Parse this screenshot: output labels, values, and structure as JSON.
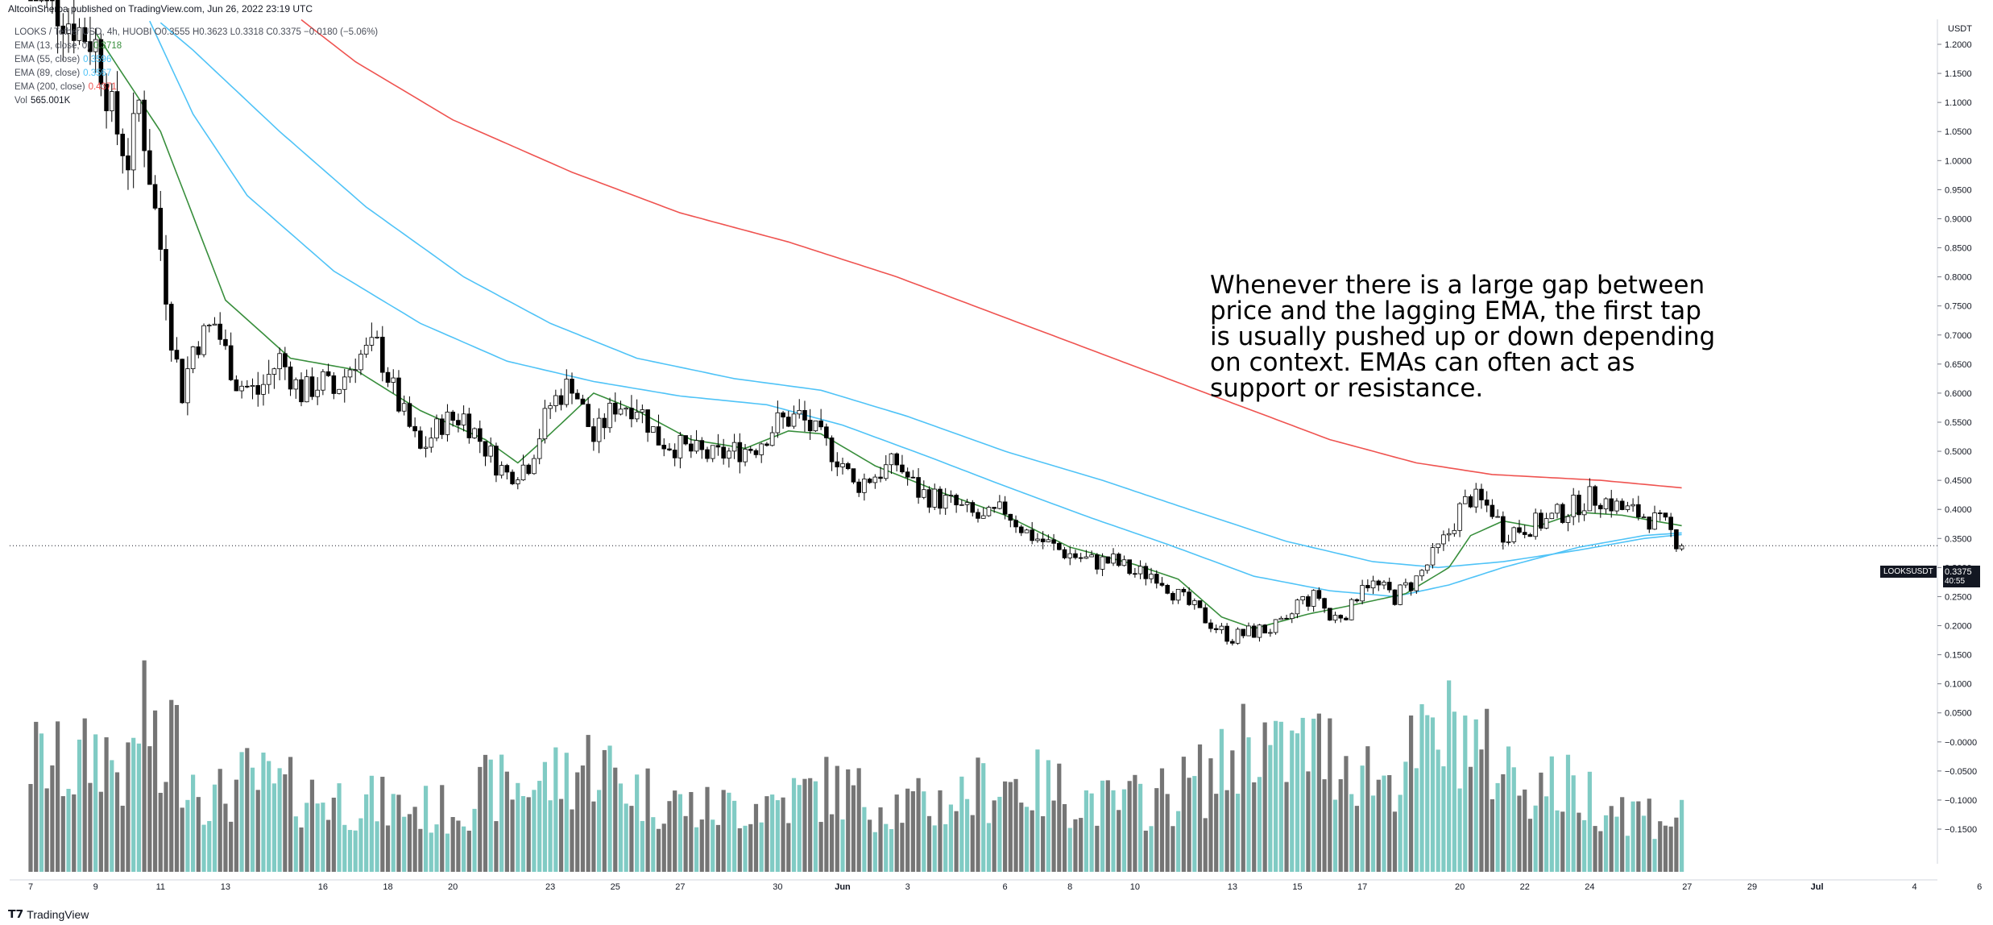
{
  "header": {
    "attribution": "AltcoinSherpa published on TradingView.com, Jun 26, 2022 23:19 UTC"
  },
  "legend": {
    "ohlc": "LOOKS / Tether USD, 4h, HUOBI  O0.3555  H0.3623  L0.3318  C0.3375  −0.0180 (−5.06%)",
    "ema13": {
      "label": "EMA (13, close, 0)",
      "value": "0.3718",
      "color": "#388e3c"
    },
    "ema55": {
      "label": "EMA (55, close)",
      "value": "0.3596",
      "color": "#4fc3f7"
    },
    "ema89": {
      "label": "EMA (89, close)",
      "value": "0.3567",
      "color": "#4fc3f7"
    },
    "ema200": {
      "label": "EMA (200, close)",
      "value": "0.4371",
      "color": "#ef5350"
    },
    "vol": {
      "label": "Vol",
      "value": "565.001K"
    }
  },
  "annotation": "Whenever there is a large gap between price and the lagging EMA, the first tap is usually pushed up or down depending on context. EMAs can often act as support or resistance.",
  "price_axis": {
    "unit": "USDT",
    "ticks": [
      "1.2000",
      "1.1500",
      "1.1000",
      "1.0500",
      "1.0000",
      "0.9500",
      "0.9000",
      "0.8500",
      "0.8000",
      "0.7500",
      "0.7000",
      "0.6500",
      "0.6000",
      "0.5500",
      "0.5000",
      "0.4500",
      "0.4000",
      "0.3500",
      "0.3000",
      "0.2500",
      "0.2000",
      "0.1500",
      "0.1000",
      "0.0500",
      "−0.0000",
      "−0.0500",
      "−0.1000",
      "−0.1500"
    ]
  },
  "current_price": {
    "symbol": "LOOKSUSDT",
    "price": "0.3375",
    "countdown": "40:55"
  },
  "time_axis": {
    "labels": [
      {
        "label": "7",
        "t": 0
      },
      {
        "label": "9",
        "t": 12
      },
      {
        "label": "11",
        "t": 24
      },
      {
        "label": "13",
        "t": 36
      },
      {
        "label": "16",
        "t": 54
      },
      {
        "label": "18",
        "t": 66
      },
      {
        "label": "20",
        "t": 78
      },
      {
        "label": "23",
        "t": 96
      },
      {
        "label": "25",
        "t": 108
      },
      {
        "label": "27",
        "t": 120
      },
      {
        "label": "30",
        "t": 138
      },
      {
        "label": "Jun",
        "t": 150
      },
      {
        "label": "3",
        "t": 162
      },
      {
        "label": "6",
        "t": 180
      },
      {
        "label": "8",
        "t": 192
      },
      {
        "label": "10",
        "t": 204
      },
      {
        "label": "13",
        "t": 222
      },
      {
        "label": "15",
        "t": 234
      },
      {
        "label": "17",
        "t": 246
      },
      {
        "label": "20",
        "t": 264
      },
      {
        "label": "22",
        "t": 276
      },
      {
        "label": "24",
        "t": 288
      },
      {
        "label": "27",
        "t": 306
      },
      {
        "label": "29",
        "t": 318
      },
      {
        "label": "Jul",
        "t": 330
      },
      {
        "label": "4",
        "t": 348
      },
      {
        "label": "6",
        "t": 360
      }
    ]
  },
  "chart_data": {
    "type": "candlestick",
    "interval": "4h",
    "y_scale": "linear",
    "ylim": [
      -0.17,
      1.22
    ],
    "colors": {
      "up": "#ffffff",
      "down": "#000000",
      "vol_up": "#80cbc4",
      "vol_down": "#757575",
      "ema13": "#388e3c",
      "ema55": "#4fc3f7",
      "ema89": "#4fc3f7",
      "ema200": "#ef5350"
    },
    "close_anchors": [
      [
        0,
        1.3
      ],
      [
        12,
        1.2
      ],
      [
        14,
        1.12
      ],
      [
        16,
        1.05
      ],
      [
        18,
        1.0
      ],
      [
        20,
        1.1
      ],
      [
        24,
        0.85
      ],
      [
        26,
        0.7
      ],
      [
        28,
        0.6
      ],
      [
        30,
        0.68
      ],
      [
        34,
        0.72
      ],
      [
        38,
        0.62
      ],
      [
        42,
        0.6
      ],
      [
        46,
        0.66
      ],
      [
        50,
        0.6
      ],
      [
        54,
        0.62
      ],
      [
        56,
        0.6
      ],
      [
        60,
        0.66
      ],
      [
        64,
        0.68
      ],
      [
        68,
        0.58
      ],
      [
        72,
        0.5
      ],
      [
        76,
        0.55
      ],
      [
        80,
        0.56
      ],
      [
        86,
        0.48
      ],
      [
        88,
        0.46
      ],
      [
        92,
        0.48
      ],
      [
        96,
        0.58
      ],
      [
        100,
        0.62
      ],
      [
        104,
        0.52
      ],
      [
        108,
        0.58
      ],
      [
        112,
        0.58
      ],
      [
        116,
        0.52
      ],
      [
        122,
        0.5
      ],
      [
        126,
        0.49
      ],
      [
        130,
        0.5
      ],
      [
        134,
        0.51
      ],
      [
        138,
        0.55
      ],
      [
        142,
        0.56
      ],
      [
        146,
        0.52
      ],
      [
        150,
        0.48
      ],
      [
        152,
        0.44
      ],
      [
        156,
        0.46
      ],
      [
        160,
        0.48
      ],
      [
        164,
        0.43
      ],
      [
        170,
        0.41
      ],
      [
        176,
        0.38
      ],
      [
        180,
        0.4
      ],
      [
        184,
        0.36
      ],
      [
        190,
        0.33
      ],
      [
        196,
        0.31
      ],
      [
        200,
        0.31
      ],
      [
        204,
        0.29
      ],
      [
        208,
        0.29
      ],
      [
        212,
        0.25
      ],
      [
        216,
        0.22
      ],
      [
        220,
        0.19
      ],
      [
        222,
        0.18
      ],
      [
        226,
        0.19
      ],
      [
        232,
        0.2
      ],
      [
        234,
        0.24
      ],
      [
        238,
        0.25
      ],
      [
        240,
        0.21
      ],
      [
        244,
        0.23
      ],
      [
        246,
        0.28
      ],
      [
        248,
        0.27
      ],
      [
        252,
        0.25
      ],
      [
        256,
        0.28
      ],
      [
        260,
        0.33
      ],
      [
        262,
        0.36
      ],
      [
        264,
        0.4
      ],
      [
        266,
        0.42
      ],
      [
        268,
        0.41
      ],
      [
        270,
        0.4
      ],
      [
        272,
        0.36
      ],
      [
        276,
        0.37
      ],
      [
        280,
        0.38
      ],
      [
        284,
        0.4
      ],
      [
        288,
        0.42
      ],
      [
        290,
        0.42
      ],
      [
        294,
        0.4
      ],
      [
        298,
        0.39
      ],
      [
        302,
        0.37
      ],
      [
        305,
        0.3375
      ]
    ],
    "volume_anchors": [
      [
        0,
        0.56
      ],
      [
        8,
        0.5
      ],
      [
        13,
        0.62
      ],
      [
        18,
        0.45
      ],
      [
        21,
        0.86
      ],
      [
        24,
        0.4
      ],
      [
        26,
        0.72
      ],
      [
        28,
        0.55
      ],
      [
        34,
        0.35
      ],
      [
        40,
        0.45
      ],
      [
        50,
        0.38
      ],
      [
        60,
        0.35
      ],
      [
        68,
        0.32
      ],
      [
        76,
        0.3
      ],
      [
        84,
        0.4
      ],
      [
        96,
        0.45
      ],
      [
        104,
        0.55
      ],
      [
        112,
        0.4
      ],
      [
        124,
        0.3
      ],
      [
        140,
        0.36
      ],
      [
        148,
        0.42
      ],
      [
        156,
        0.35
      ],
      [
        166,
        0.32
      ],
      [
        180,
        0.45
      ],
      [
        190,
        0.4
      ],
      [
        200,
        0.32
      ],
      [
        210,
        0.38
      ],
      [
        220,
        0.5
      ],
      [
        226,
        0.72
      ],
      [
        230,
        0.55
      ],
      [
        236,
        0.62
      ],
      [
        244,
        0.55
      ],
      [
        250,
        0.45
      ],
      [
        258,
        0.62
      ],
      [
        264,
        0.72
      ],
      [
        268,
        0.58
      ],
      [
        276,
        0.45
      ],
      [
        286,
        0.4
      ],
      [
        296,
        0.3
      ],
      [
        305,
        0.26
      ]
    ],
    "ema13_anchors": [
      [
        12,
        1.22
      ],
      [
        24,
        1.05
      ],
      [
        36,
        0.76
      ],
      [
        48,
        0.66
      ],
      [
        60,
        0.64
      ],
      [
        72,
        0.57
      ],
      [
        84,
        0.52
      ],
      [
        90,
        0.48
      ],
      [
        96,
        0.53
      ],
      [
        104,
        0.6
      ],
      [
        112,
        0.57
      ],
      [
        122,
        0.52
      ],
      [
        132,
        0.505
      ],
      [
        140,
        0.535
      ],
      [
        146,
        0.53
      ],
      [
        156,
        0.475
      ],
      [
        168,
        0.43
      ],
      [
        180,
        0.39
      ],
      [
        192,
        0.335
      ],
      [
        204,
        0.305
      ],
      [
        212,
        0.28
      ],
      [
        220,
        0.215
      ],
      [
        226,
        0.195
      ],
      [
        236,
        0.22
      ],
      [
        244,
        0.235
      ],
      [
        254,
        0.255
      ],
      [
        262,
        0.3
      ],
      [
        266,
        0.355
      ],
      [
        272,
        0.38
      ],
      [
        278,
        0.37
      ],
      [
        286,
        0.395
      ],
      [
        294,
        0.39
      ],
      [
        300,
        0.38
      ],
      [
        305,
        0.372
      ]
    ],
    "ema55_anchors": [
      [
        20,
        1.28
      ],
      [
        30,
        1.08
      ],
      [
        40,
        0.94
      ],
      [
        56,
        0.81
      ],
      [
        72,
        0.72
      ],
      [
        88,
        0.655
      ],
      [
        104,
        0.62
      ],
      [
        120,
        0.595
      ],
      [
        136,
        0.58
      ],
      [
        150,
        0.545
      ],
      [
        166,
        0.49
      ],
      [
        180,
        0.44
      ],
      [
        196,
        0.385
      ],
      [
        210,
        0.34
      ],
      [
        226,
        0.285
      ],
      [
        240,
        0.26
      ],
      [
        252,
        0.25
      ],
      [
        262,
        0.27
      ],
      [
        272,
        0.3
      ],
      [
        286,
        0.335
      ],
      [
        298,
        0.355
      ],
      [
        305,
        0.3596
      ]
    ],
    "ema89_anchors": [
      [
        16,
        1.3
      ],
      [
        30,
        1.19
      ],
      [
        46,
        1.05
      ],
      [
        62,
        0.92
      ],
      [
        80,
        0.8
      ],
      [
        96,
        0.72
      ],
      [
        112,
        0.66
      ],
      [
        130,
        0.625
      ],
      [
        146,
        0.605
      ],
      [
        162,
        0.56
      ],
      [
        180,
        0.5
      ],
      [
        198,
        0.45
      ],
      [
        214,
        0.4
      ],
      [
        232,
        0.345
      ],
      [
        248,
        0.31
      ],
      [
        260,
        0.3
      ],
      [
        272,
        0.31
      ],
      [
        286,
        0.33
      ],
      [
        298,
        0.35
      ],
      [
        305,
        0.3567
      ]
    ],
    "ema200_anchors": [
      [
        42,
        1.3
      ],
      [
        60,
        1.17
      ],
      [
        78,
        1.07
      ],
      [
        100,
        0.98
      ],
      [
        120,
        0.91
      ],
      [
        140,
        0.86
      ],
      [
        160,
        0.8
      ],
      [
        180,
        0.73
      ],
      [
        200,
        0.66
      ],
      [
        220,
        0.59
      ],
      [
        240,
        0.52
      ],
      [
        256,
        0.48
      ],
      [
        270,
        0.46
      ],
      [
        290,
        0.45
      ],
      [
        305,
        0.4371
      ]
    ]
  }
}
